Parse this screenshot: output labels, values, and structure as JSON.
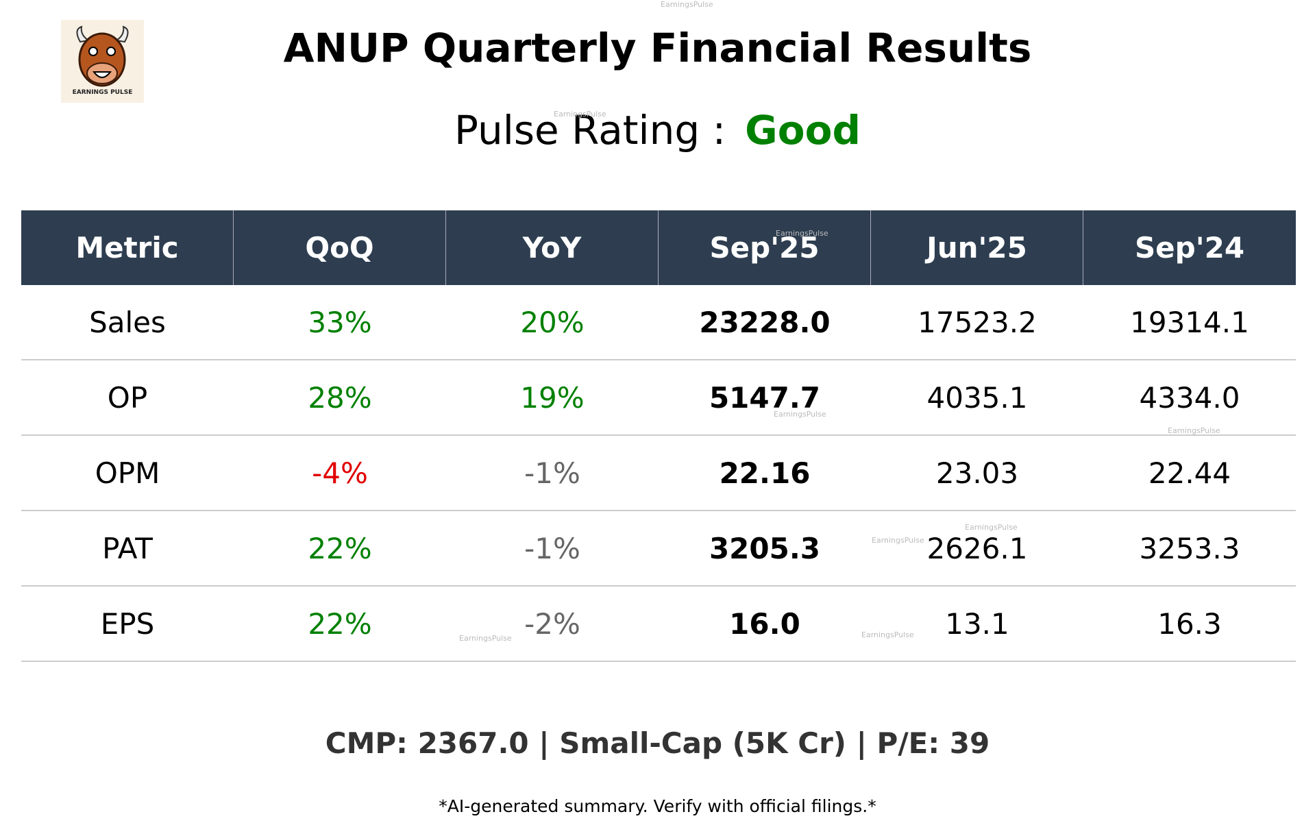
{
  "logo": {
    "caption": "EARNINGS PULSE"
  },
  "header": {
    "title": "ANUP Quarterly Financial Results",
    "rating_label": "Pulse Rating :",
    "rating_value": "Good"
  },
  "table": {
    "columns": [
      "Metric",
      "QoQ",
      "YoY",
      "Sep'25",
      "Jun'25",
      "Sep'24"
    ],
    "rows": [
      [
        "Sales",
        "33%",
        "20%",
        "23228.0",
        "17523.2",
        "19314.1"
      ],
      [
        "OP",
        "28%",
        "19%",
        "5147.7",
        "4035.1",
        "4334.0"
      ],
      [
        "OPM",
        "-4%",
        "-1%",
        "22.16",
        "23.03",
        "22.44"
      ],
      [
        "PAT",
        "22%",
        "-1%",
        "3205.3",
        "2626.1",
        "3253.3"
      ],
      [
        "EPS",
        "22%",
        "-2%",
        "16.0",
        "13.1",
        "16.3"
      ]
    ]
  },
  "footer": {
    "summary": "CMP: 2367.0 | Small-Cap (5K Cr) | P/E: 39",
    "disclaimer": "*AI-generated summary. Verify with official filings.*"
  },
  "watermark": "EarningsPulse"
}
